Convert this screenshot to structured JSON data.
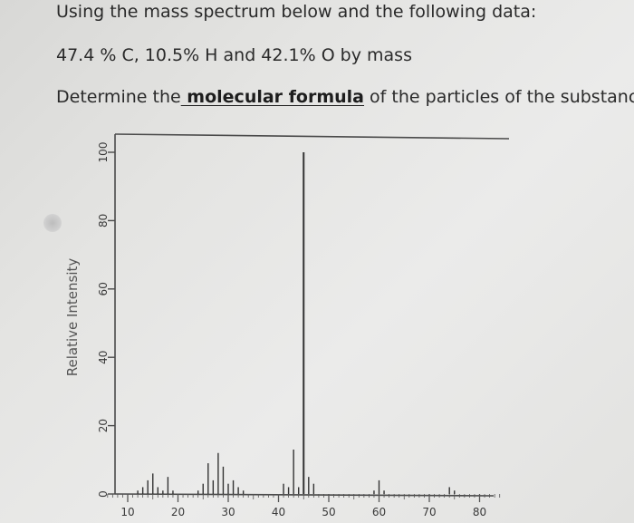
{
  "question": {
    "line1": "Using the mass spectrum below and the following data:",
    "line2": "47.4 % C, 10.5% H and 42.1% O  by mass",
    "line3_pre": "Determine the",
    "line3_link": " molecular formula",
    "line3_post": " of the particles of the substance."
  },
  "chart_data": {
    "type": "bar",
    "title": "",
    "xlabel": "",
    "ylabel": "Relative Intensity",
    "xlim": [
      6,
      84
    ],
    "ylim": [
      0,
      100
    ],
    "x_ticks": [
      10,
      20,
      30,
      40,
      50,
      60,
      70,
      80
    ],
    "y_ticks": [
      0,
      20,
      40,
      60,
      80,
      100
    ],
    "grid": false,
    "x": [
      12,
      13,
      14,
      15,
      16,
      17,
      18,
      19,
      24,
      25,
      26,
      27,
      28,
      29,
      30,
      31,
      32,
      33,
      41,
      42,
      43,
      44,
      45,
      46,
      47,
      59,
      60,
      61,
      74,
      75
    ],
    "values": [
      1,
      2,
      4,
      6,
      2,
      1,
      5,
      1,
      1,
      3,
      9,
      4,
      12,
      8,
      3,
      4,
      2,
      1,
      3,
      2,
      13,
      2,
      100,
      5,
      3,
      1,
      4,
      1,
      2,
      1
    ]
  }
}
